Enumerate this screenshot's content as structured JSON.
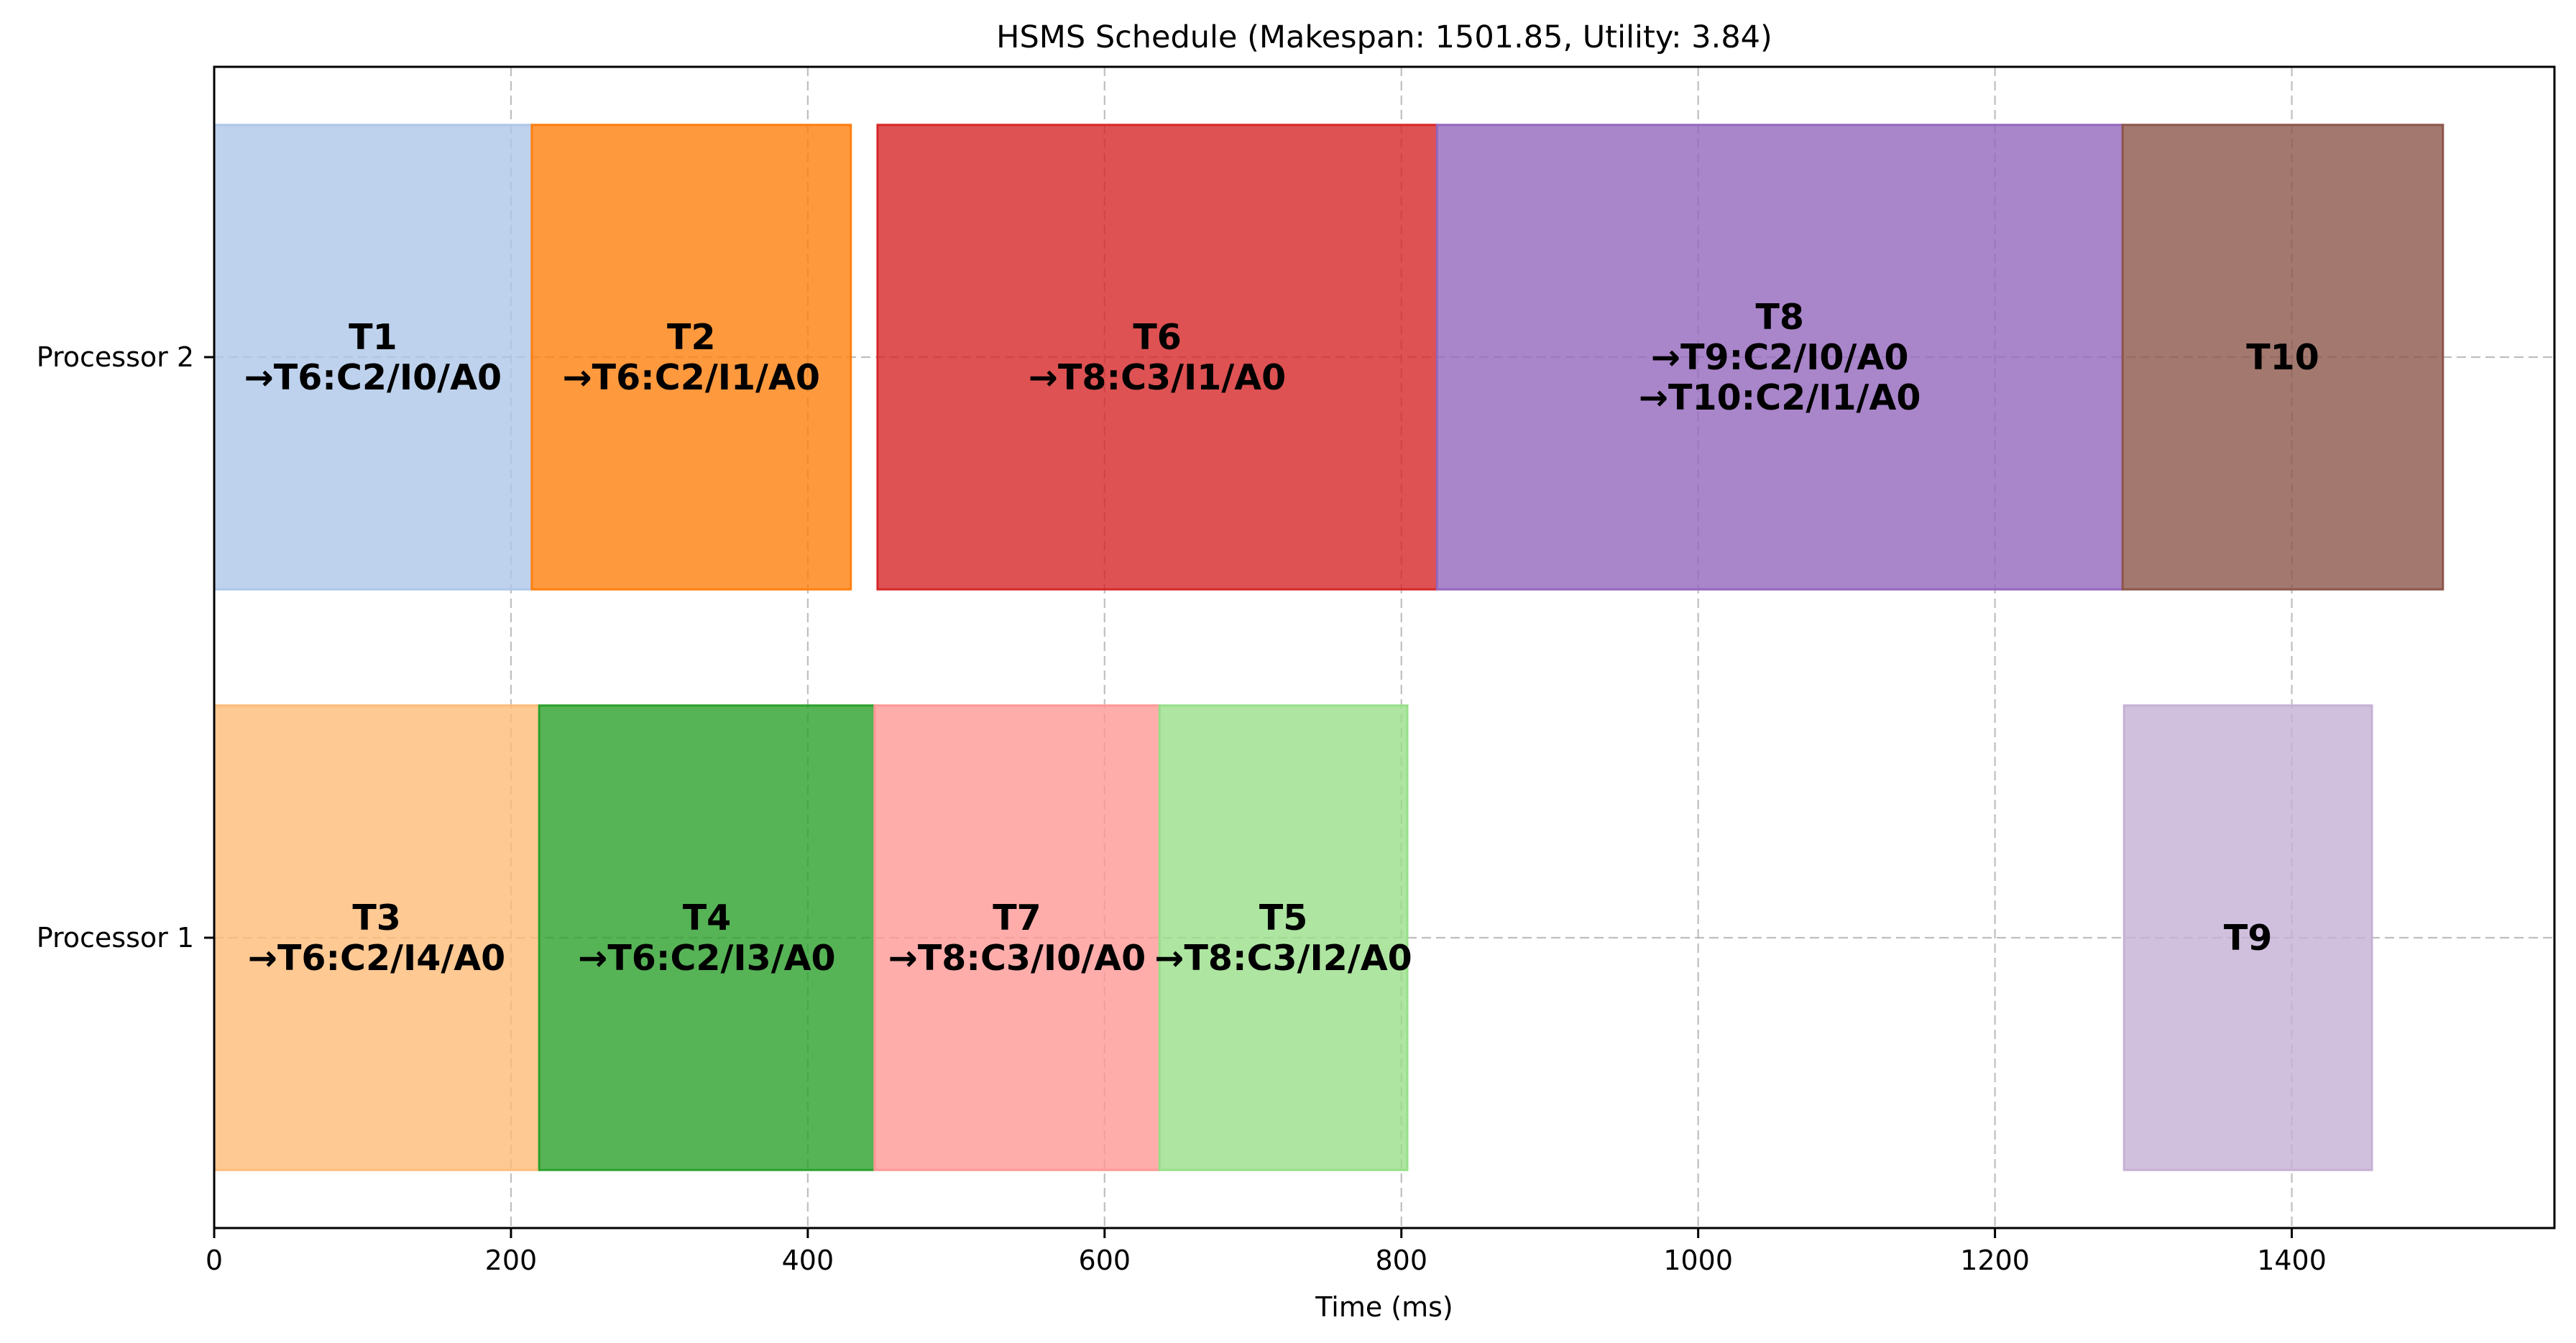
{
  "chart_data": {
    "type": "gantt",
    "title": "HSMS Schedule (Makespan: 1501.85, Utility: 3.84)",
    "xlabel": "Time (ms)",
    "ylabel": "",
    "xlim": [
      0,
      1577
    ],
    "xticks": [
      0,
      200,
      400,
      600,
      800,
      1000,
      1200,
      1400
    ],
    "grid": true,
    "rows": [
      "Processor 1",
      "Processor 2"
    ],
    "tasks": [
      {
        "id": "T1",
        "processor": "Processor 2",
        "start": 0,
        "end": 214,
        "color": "#aec7e8",
        "label": [
          "T1",
          "→T6:C2/I0/A0"
        ]
      },
      {
        "id": "T2",
        "processor": "Processor 2",
        "start": 214,
        "end": 429,
        "color": "#ff7f0e",
        "label": [
          "T2",
          "→T6:C2/I1/A0"
        ]
      },
      {
        "id": "T6",
        "processor": "Processor 2",
        "start": 447,
        "end": 824,
        "color": "#d62728",
        "label": [
          "T6",
          "→T8:C3/I1/A0"
        ]
      },
      {
        "id": "T8",
        "processor": "Processor 2",
        "start": 824,
        "end": 1286,
        "color": "#9467bd",
        "label": [
          "T8",
          "→T9:C2/I0/A0",
          "→T10:C2/I1/A0"
        ]
      },
      {
        "id": "T10",
        "processor": "Processor 2",
        "start": 1286,
        "end": 1501.85,
        "color": "#8c564b",
        "label": [
          "T10"
        ]
      },
      {
        "id": "T3",
        "processor": "Processor 1",
        "start": 0,
        "end": 219,
        "color": "#ffbb78",
        "label": [
          "T3",
          "→T6:C2/I4/A0"
        ]
      },
      {
        "id": "T4",
        "processor": "Processor 1",
        "start": 219,
        "end": 445,
        "color": "#2ca02c",
        "label": [
          "T4",
          "→T6:C2/I3/A0"
        ]
      },
      {
        "id": "T7",
        "processor": "Processor 1",
        "start": 445,
        "end": 637,
        "color": "#ff9896",
        "label": [
          "T7",
          "→T8:C3/I0/A0"
        ]
      },
      {
        "id": "T5",
        "processor": "Processor 1",
        "start": 637,
        "end": 804,
        "color": "#98df8a",
        "label": [
          "T5",
          "→T8:C3/I2/A0"
        ]
      },
      {
        "id": "T9",
        "processor": "Processor 1",
        "start": 1287,
        "end": 1454,
        "color": "#c5b0d5",
        "label": [
          "T9"
        ]
      }
    ]
  }
}
